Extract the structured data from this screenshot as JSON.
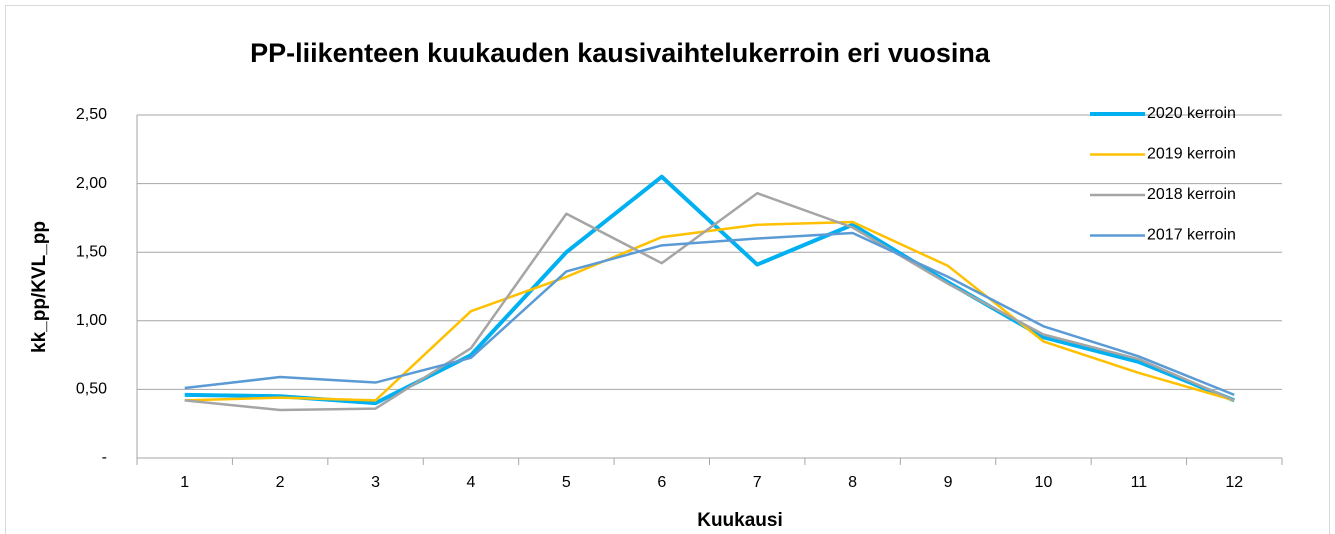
{
  "chart_data": {
    "type": "line",
    "title": "PP-liikenteen kuukauden kausivaihtelukerroin eri vuosina",
    "x_label": "Kuukausi",
    "y_label": "kk_pp/KVL_pp",
    "categories": [
      "1",
      "2",
      "3",
      "4",
      "5",
      "6",
      "7",
      "8",
      "9",
      "10",
      "11",
      "12"
    ],
    "series": [
      {
        "name": "2020 kerroin",
        "color": "#00b0f0",
        "line_width": 4,
        "values": [
          0.46,
          0.45,
          0.4,
          0.75,
          1.5,
          2.05,
          1.41,
          1.7,
          1.28,
          0.88,
          0.7,
          0.42
        ]
      },
      {
        "name": "2019 kerroin",
        "color": "#ffc000",
        "line_width": 2.5,
        "values": [
          0.42,
          0.44,
          0.42,
          1.07,
          1.32,
          1.61,
          1.7,
          1.72,
          1.4,
          0.85,
          0.62,
          0.42
        ]
      },
      {
        "name": "2018 kerroin",
        "color": "#a5a5a5",
        "line_width": 2.5,
        "values": [
          0.42,
          0.35,
          0.36,
          0.8,
          1.78,
          1.42,
          1.93,
          1.68,
          1.27,
          0.9,
          0.72,
          0.42
        ]
      },
      {
        "name": "2017 kerroin",
        "color": "#5b9bd5",
        "line_width": 2.5,
        "values": [
          0.51,
          0.59,
          0.55,
          0.73,
          1.36,
          1.55,
          1.6,
          1.64,
          1.32,
          0.96,
          0.74,
          0.46
        ]
      }
    ],
    "ylim": [
      0,
      2.5
    ],
    "yticks": [
      {
        "value": 0,
        "label": "-"
      },
      {
        "value": 0.5,
        "label": "0,50"
      },
      {
        "value": 1,
        "label": "1,00"
      },
      {
        "value": 1.5,
        "label": "1,50"
      },
      {
        "value": 2,
        "label": "2,00"
      },
      {
        "value": 2.5,
        "label": "2,50"
      }
    ],
    "grid": true,
    "legend": "top-right"
  }
}
